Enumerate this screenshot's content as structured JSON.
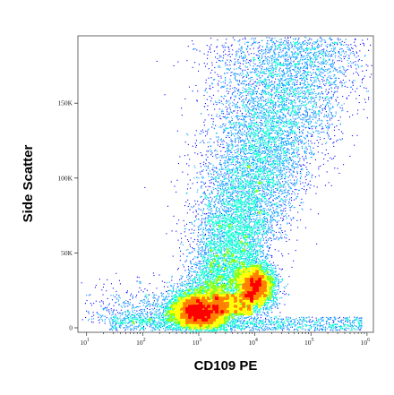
{
  "chart_data": {
    "type": "scatter",
    "plot_style": "flow cytometry density dot plot (pseudocolor)",
    "xlabel": "CD109 PE",
    "ylabel": "Side Scatter",
    "x_scale": "log",
    "x_ticks": [
      {
        "value": 10,
        "base": "10",
        "exp": "1"
      },
      {
        "value": 100,
        "base": "10",
        "exp": "2"
      },
      {
        "value": 1000,
        "base": "10",
        "exp": "3"
      },
      {
        "value": 10000,
        "base": "10",
        "exp": "4"
      },
      {
        "value": 100000,
        "base": "10",
        "exp": "5"
      },
      {
        "value": 1000000,
        "base": "10",
        "exp": "6"
      }
    ],
    "xlim": [
      7,
      1300000
    ],
    "y_scale": "linear",
    "y_ticks": [
      {
        "value": 0,
        "label": "0"
      },
      {
        "value": 50000,
        "label": "50K"
      },
      {
        "value": 100000,
        "label": "100K"
      },
      {
        "value": 150000,
        "label": "150K"
      }
    ],
    "ylim": [
      -3000,
      195000
    ],
    "grid": false,
    "legend": "none",
    "density_colormap": [
      "#0000ff",
      "#00a0ff",
      "#00ffd0",
      "#7fff00",
      "#ffff00",
      "#ff8000",
      "#ff0000"
    ],
    "populations": [
      {
        "x_center": 900,
        "y_center": 12000,
        "note": "dense lower-left population"
      },
      {
        "x_center": 10000,
        "y_center": 28000,
        "note": "dense CD109-positive population"
      }
    ]
  }
}
